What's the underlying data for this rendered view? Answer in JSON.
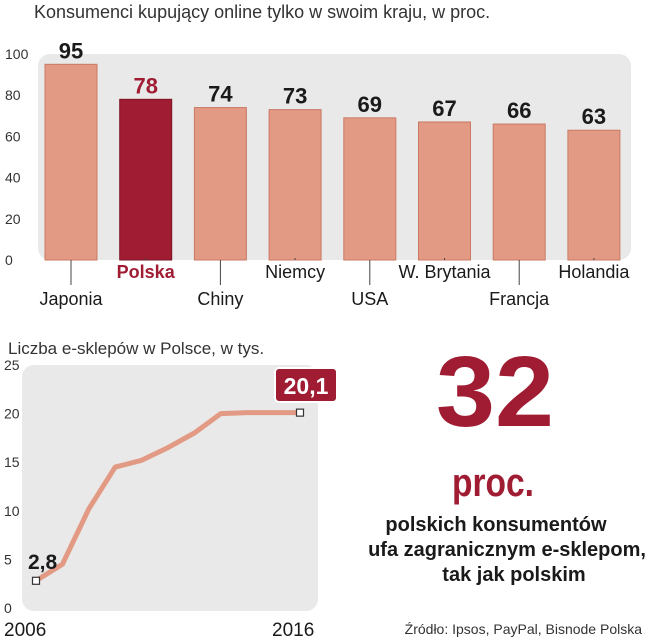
{
  "chart_data": [
    {
      "type": "bar",
      "title": "Konsumenci kupujący online tylko w swoim kraju, w proc.",
      "categories": [
        "Japonia",
        "Polska",
        "Chiny",
        "Niemcy",
        "USA",
        "W. Brytania",
        "Francja",
        "Holandia"
      ],
      "values": [
        95,
        78,
        74,
        73,
        69,
        67,
        66,
        63
      ],
      "value_labels": [
        "95",
        "78",
        "74",
        "73",
        "69",
        "67",
        "66",
        "63"
      ],
      "highlight": "Polska",
      "ylim": [
        0,
        100
      ],
      "yticks": [
        0,
        20,
        40,
        60,
        80,
        100
      ],
      "grid": false,
      "colors": {
        "bar": "#e29a84",
        "bar_edge": "#c97a64",
        "highlight": "#a01c33",
        "panel": "#e9e9e9"
      }
    },
    {
      "type": "line",
      "title": "Liczba e-sklepów w Polsce, w tys.",
      "x": [
        2006,
        2007,
        2008,
        2009,
        2010,
        2011,
        2012,
        2013,
        2014,
        2015,
        2016
      ],
      "values": [
        2.8,
        4.5,
        10.2,
        14.5,
        15.2,
        16.5,
        18.0,
        20.0,
        20.1,
        20.1,
        20.1
      ],
      "x_tick_labels": [
        "2006",
        "2016"
      ],
      "yticks": [
        0,
        5,
        10,
        15,
        20,
        25
      ],
      "ylim": [
        0,
        25
      ],
      "annotations": {
        "start": "2,8",
        "end": "20,1"
      },
      "grid": false,
      "colors": {
        "line": "#e29a84",
        "panel": "#e9e9e9",
        "end_box": "#a01c33"
      }
    }
  ],
  "highlight_stat": {
    "number": "32",
    "unit": "proc.",
    "lines": [
      "polskich konsumentów",
      "ufa zagranicznym e-sklepom,",
      "tak jak polskim"
    ],
    "color": "#a01c33"
  },
  "source": "Źródło: Ipsos, PayPal, Bisnode Polska"
}
